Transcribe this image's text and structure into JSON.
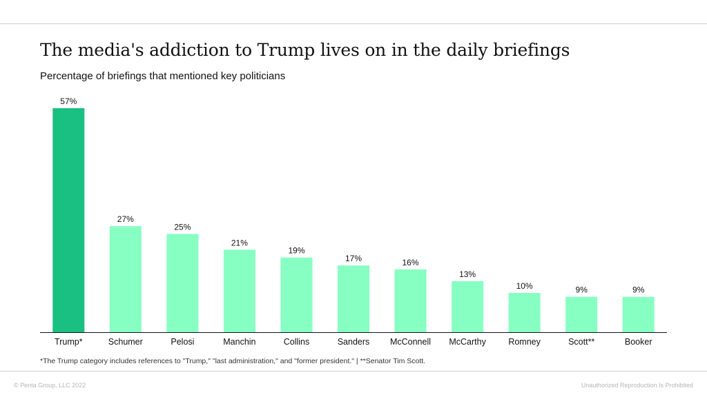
{
  "title": "The media's addiction to Trump lives on in the daily briefings",
  "subtitle": "Percentage of briefings that mentioned key politicians",
  "footnote": "*The Trump category includes references to \"Trump,\" \"last administration,\" and \"former president.\" | **Senator Tim Scott.",
  "footer": {
    "copyright": "© Penta Group, LLC 2022",
    "disclaimer": "Unauthorized Reproduction Is Prohibited"
  },
  "colors": {
    "highlight_bar": "#1abf82",
    "bar": "#87ffc3",
    "rule": "#cfcfcf"
  },
  "chart_data": {
    "type": "bar",
    "categories": [
      "Trump*",
      "Schumer",
      "Pelosi",
      "Manchin",
      "Collins",
      "Sanders",
      "McConnell",
      "McCarthy",
      "Romney",
      "Scott**",
      "Booker"
    ],
    "values": [
      57,
      27,
      25,
      21,
      19,
      17,
      16,
      13,
      10,
      9,
      9
    ],
    "data_labels": [
      "57%",
      "27%",
      "25%",
      "21%",
      "19%",
      "17%",
      "16%",
      "13%",
      "10%",
      "9%",
      "9%"
    ],
    "highlight_index": 0,
    "ylim": [
      0,
      57
    ],
    "grid": false,
    "legend": "none"
  }
}
